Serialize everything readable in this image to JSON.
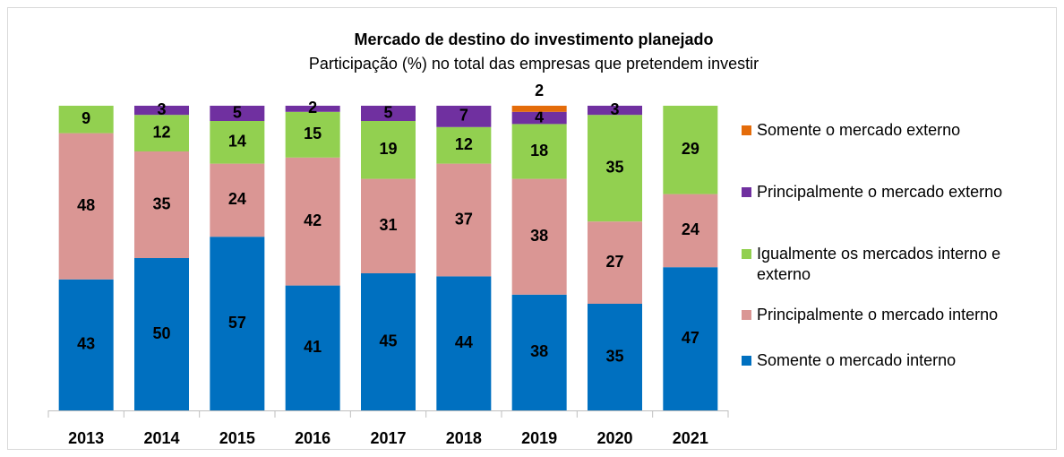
{
  "chart_data": {
    "type": "stacked_bar",
    "title": "Mercado de destino do investimento planejado",
    "subtitle": "Participação (%) no total das empresas que pretendem investir",
    "categories": [
      "2013",
      "2014",
      "2015",
      "2016",
      "2017",
      "2018",
      "2019",
      "2020",
      "2021"
    ],
    "ylim": [
      0,
      100
    ],
    "series": [
      {
        "name": "Somente o mercado interno",
        "color": "#0070c0",
        "values": [
          43,
          50,
          57,
          41,
          45,
          44,
          38,
          35,
          47
        ]
      },
      {
        "name": "Principalmente o mercado interno",
        "color": "#da9694",
        "values": [
          48,
          35,
          24,
          42,
          31,
          37,
          38,
          27,
          24
        ]
      },
      {
        "name": "Igualmente os mercados interno e externo",
        "color": "#92d050",
        "values": [
          9,
          12,
          14,
          15,
          19,
          12,
          18,
          35,
          29
        ]
      },
      {
        "name": "Principalmente o mercado externo",
        "color": "#7030a0",
        "values": [
          null,
          3,
          5,
          2,
          5,
          7,
          4,
          3,
          null
        ]
      },
      {
        "name": "Somente o mercado externo",
        "color": "#e46c0a",
        "values": [
          null,
          null,
          null,
          null,
          null,
          null,
          2,
          null,
          null
        ]
      }
    ]
  }
}
